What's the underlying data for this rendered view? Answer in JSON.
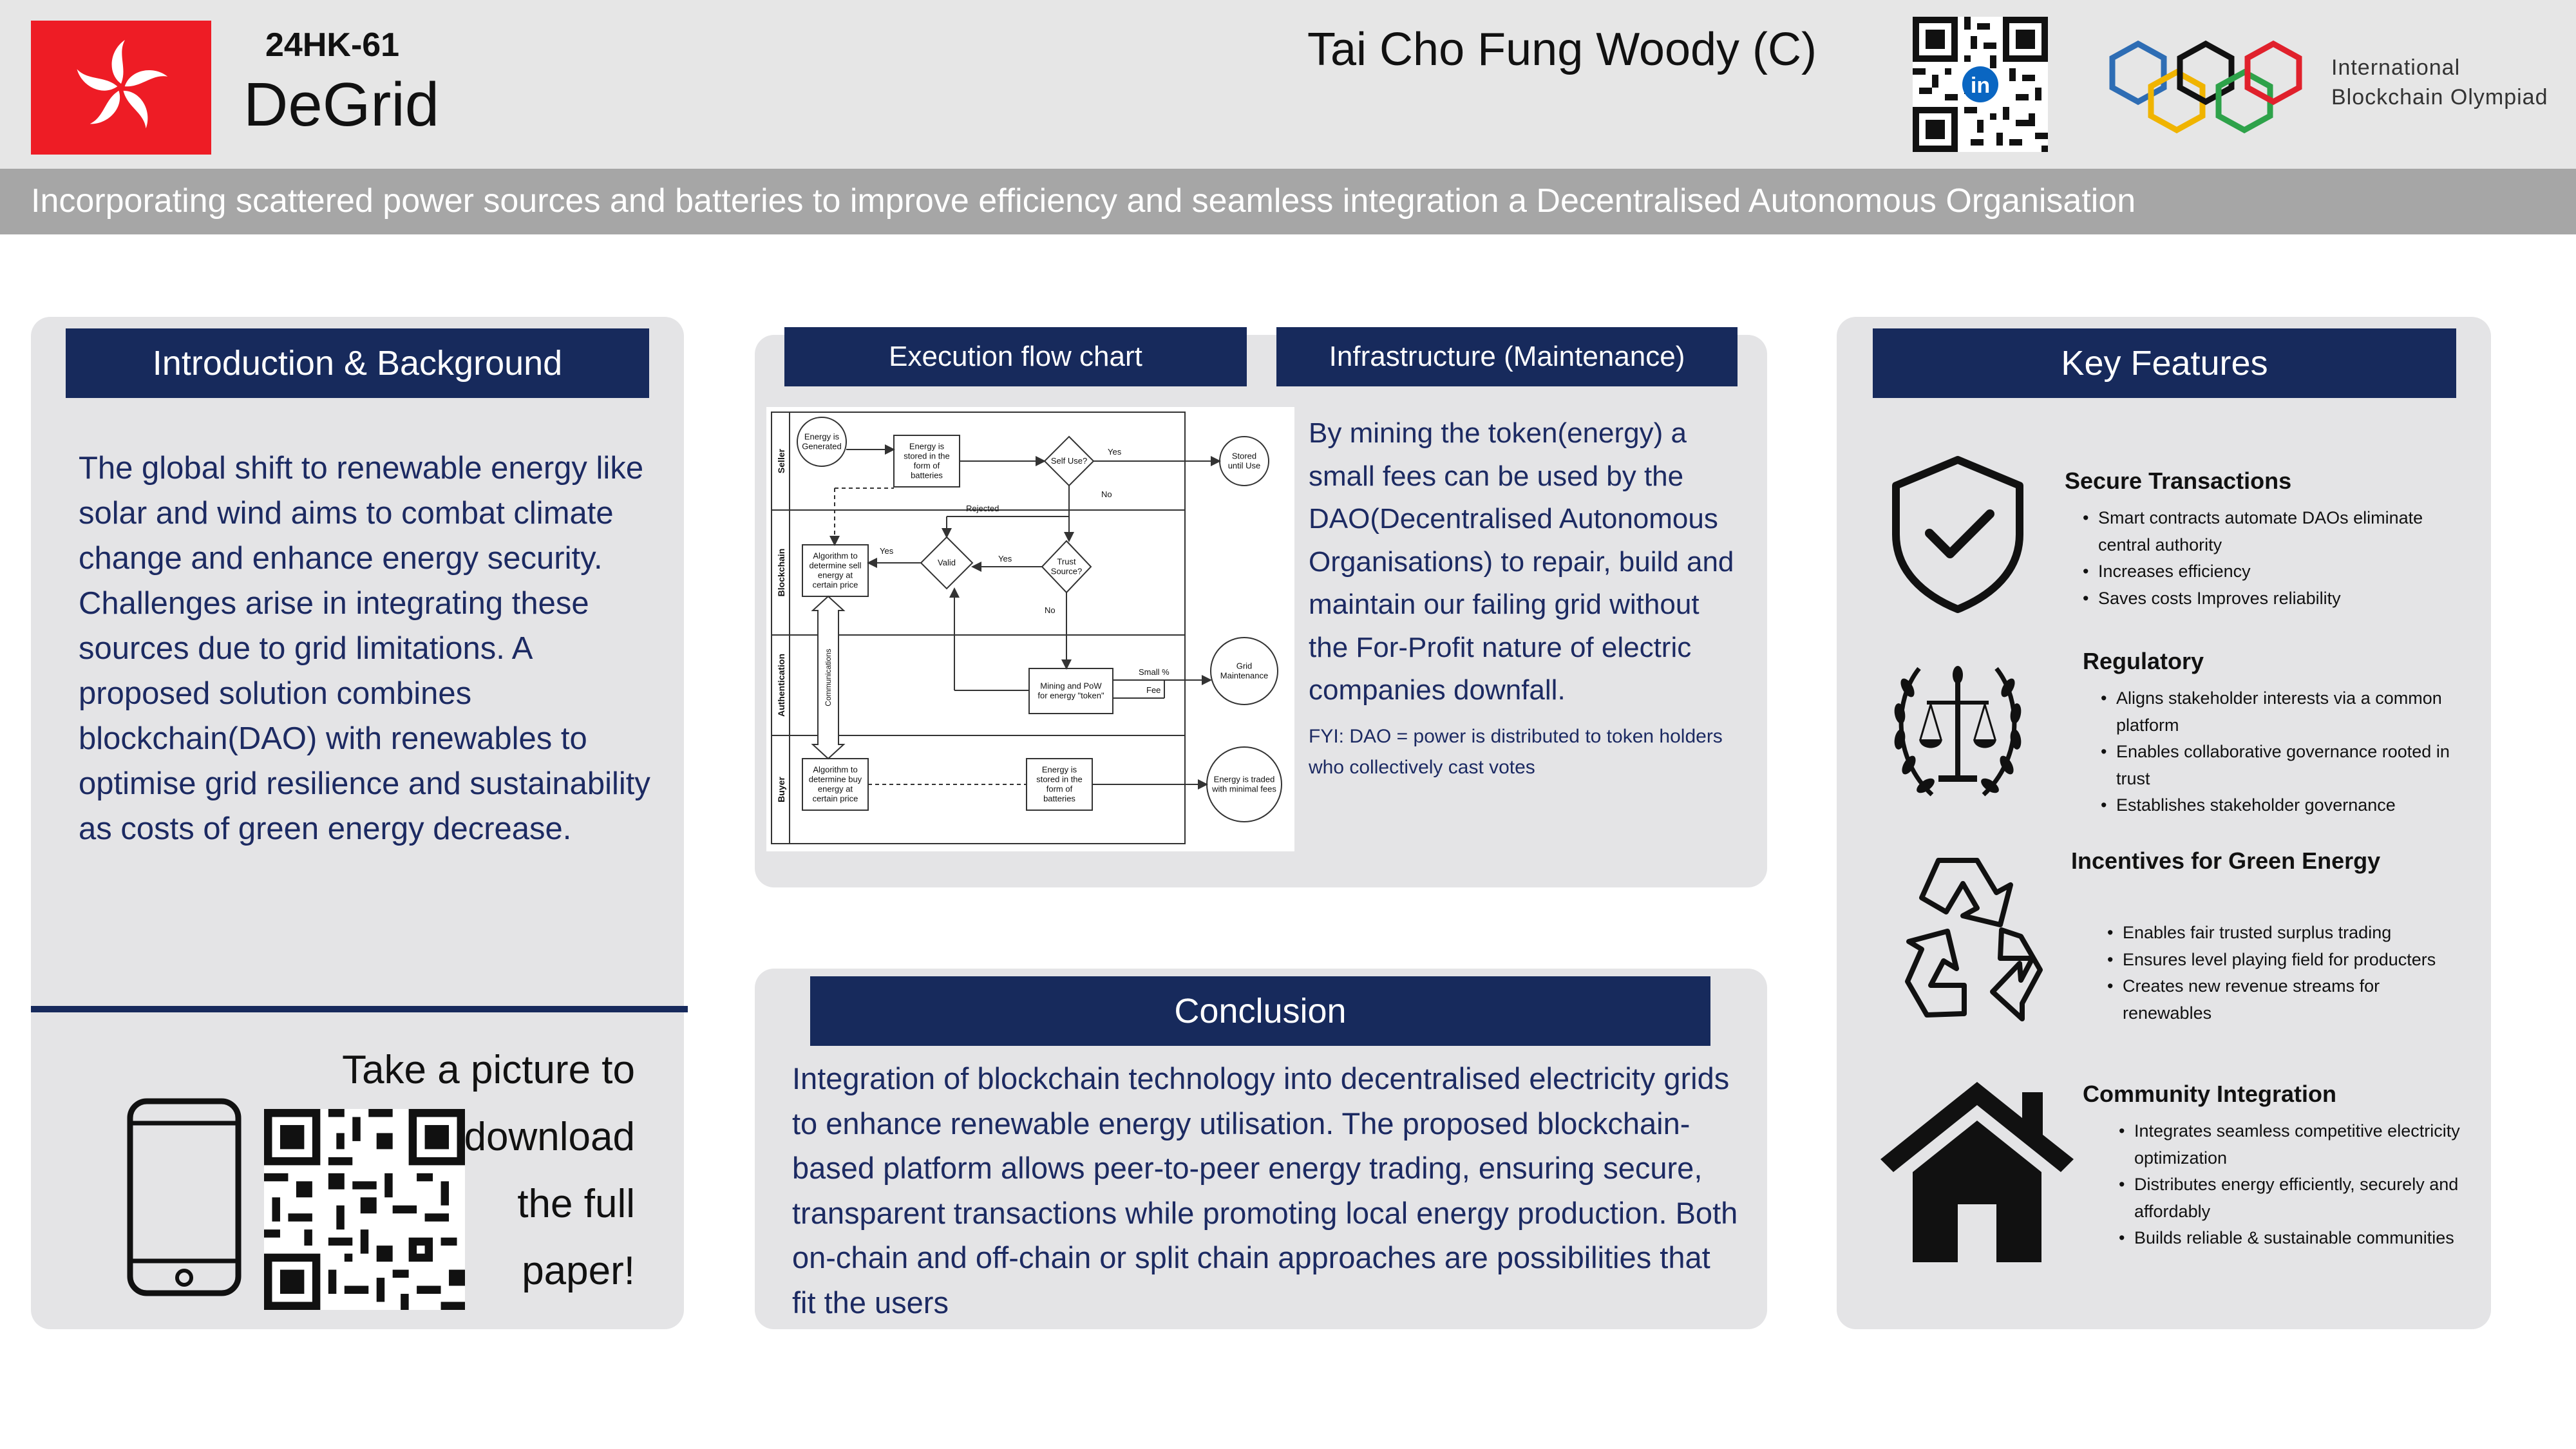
{
  "header": {
    "code": "24HK-61",
    "title": "DeGrid",
    "author": "Tai Cho Fung Woody (C)",
    "org_line1": "International",
    "org_line2": "Blockchain Olympiad",
    "qr_badge": "in"
  },
  "subtitle": "Incorporating scattered power sources and batteries to improve efficiency and seamless integration a Decentralised Autonomous Organisation",
  "intro": {
    "heading": "Introduction & Background",
    "body": "The global shift to renewable energy like solar and wind aims to combat climate change and enhance energy security. Challenges arise in integrating these sources due to grid limitations. A proposed solution combines blockchain(DAO) with renewables to optimise grid resilience and sustainability as costs of green energy decrease.",
    "download_line1": "Take a picture to download",
    "download_line2": "the full",
    "download_line3": "paper!"
  },
  "execution": {
    "heading": "Execution flow chart",
    "lanes": [
      "Seller",
      "Blockchain",
      "Authentication",
      "Buyer"
    ],
    "nodes": {
      "energy_generated": [
        "Energy is",
        "Generated"
      ],
      "stored_batteries": [
        "Energy is",
        "stored in the",
        "form of",
        "batteries"
      ],
      "self_use": [
        "Self Use?"
      ],
      "stored_until_use": [
        "Stored",
        "until Use"
      ],
      "algorithm_sell": [
        "Algorithm to",
        "determine sell",
        "energy at",
        "certain price"
      ],
      "valid": [
        "Valid"
      ],
      "trust_source": [
        "Trust",
        "Source?"
      ],
      "mining_pow": [
        "Mining and PoW",
        "for energy \"token\""
      ],
      "grid_maintenance": [
        "Grid",
        "Maintenance"
      ],
      "algorithm_buy": [
        "Algorithm to",
        "determine buy",
        "energy at",
        "certain price"
      ],
      "stored_batteries_buyer": [
        "Energy is",
        "stored in the",
        "form of",
        "batteries"
      ],
      "traded": [
        "Energy is traded",
        "with minimal fees"
      ]
    },
    "edge_labels": {
      "yes": "Yes",
      "no": "No",
      "rejected": "Rejected",
      "small_fee": [
        "Small %",
        "Fee"
      ],
      "communications": "Communications"
    }
  },
  "infrastructure": {
    "heading": "Infrastructure (Maintenance)",
    "body": "By mining the token(energy) a small fees can be used by the DAO(Decentralised Autonomous Organisations) to repair, build and maintain our failing grid without the For-Profit nature of electric companies downfall.",
    "fyi": "FYI: DAO = power is distributed to token holders who collectively cast votes"
  },
  "conclusion": {
    "heading": "Conclusion",
    "body": "Integration of blockchain technology into decentralised electricity grids to enhance renewable energy utilisation. The proposed blockchain-based platform allows peer-to-peer energy trading, ensuring secure, transparent transactions while promoting local energy production. Both on-chain and off-chain or split chain approaches are possibilities that fit the users"
  },
  "key_features": {
    "heading": "Key Features",
    "items": [
      {
        "title": "Secure Transactions",
        "icon": "shield-check-icon",
        "bullets": [
          "Smart contracts automate DAOs eliminate central authority",
          "Increases efficiency",
          "Saves costs Improves reliability"
        ]
      },
      {
        "title": "Regulatory",
        "icon": "scales-laurel-icon",
        "bullets": [
          "Aligns stakeholder interests via a common platform",
          "Enables collaborative governance rooted in trust",
          "Establishes stakeholder governance"
        ]
      },
      {
        "title": "Incentives for Green Energy",
        "icon": "recycle-icon",
        "bullets": [
          "Enables fair trusted surplus trading",
          "Ensures level playing field for producters",
          "Creates new revenue streams for renewables"
        ]
      },
      {
        "title": "Community Integration",
        "icon": "house-icon",
        "bullets": [
          "Integrates seamless competitive electricity optimization",
          "Distributes energy efficiently, securely and affordably",
          "Builds reliable & sustainable communities"
        ]
      }
    ]
  },
  "colors": {
    "navy": "#172a5c",
    "text_blue": "#1c2a62",
    "panel_gray": "#e4e4e6",
    "header_gray": "#e6e6e6",
    "subtitle_gray": "#a6a6a6",
    "hk_red": "#ee1c25",
    "ring_blue": "#2e6db4",
    "ring_yellow": "#f0b400",
    "ring_black": "#111111",
    "ring_green": "#2ea24a",
    "ring_red": "#e0212c"
  }
}
